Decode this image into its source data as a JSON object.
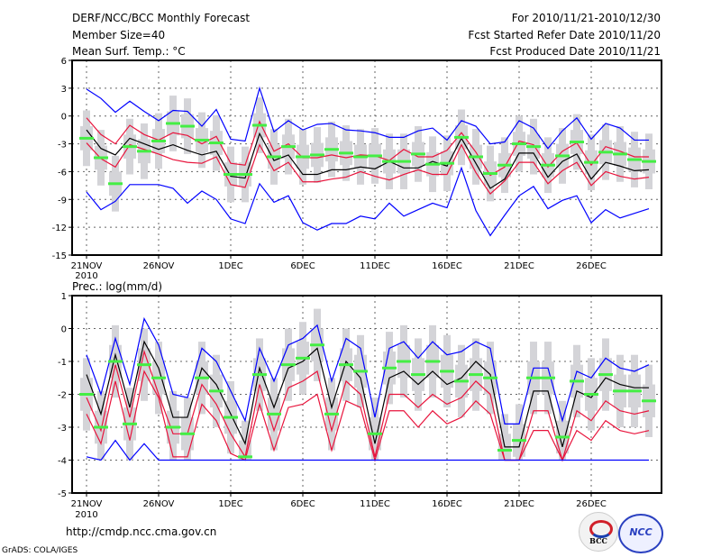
{
  "header": {
    "title": "DERF/NCC/BCC Monthly Forecast",
    "member_size": "Member Size=40",
    "top_var_label": "Mean Surf. Temp.: °C",
    "period": "For 2010/11/21-2010/12/30",
    "started": "Fcst Started Refer Date 2010/11/20",
    "produced": "Fcst Produced Date 2010/11/21"
  },
  "footer": {
    "url": "http://cmdp.ncc.cma.gov.cn",
    "grads": "GrADS: COLA/IGES",
    "logo_left": "BCC",
    "logo_right": "NCC"
  },
  "colors": {
    "max_min": "#0000ff",
    "spread": "#e8143c",
    "mean": "#000000",
    "marker": "#44ee44",
    "box": "#d4d4d8"
  },
  "chart_data": [
    {
      "type": "line",
      "title": "Mean Surf. Temp.: °C",
      "xlabel": "",
      "ylabel": "Mean Surf. Temp. (°C)",
      "ylim": [
        -15,
        6
      ],
      "yticks": [
        6,
        3,
        0,
        -3,
        -6,
        -9,
        -12,
        -15
      ],
      "ytick_labels": [
        "6",
        "3",
        "0",
        "-3",
        "-6",
        "-9",
        "-12",
        "-15"
      ],
      "xticks": [
        0,
        5,
        10,
        15,
        20,
        25,
        30,
        35
      ],
      "xtick_labels": [
        "21NOV",
        "26NOV",
        "1DEC",
        "6DEC",
        "11DEC",
        "16DEC",
        "21DEC",
        "26DEC"
      ],
      "xyear": "2010",
      "grid": true,
      "days": 40,
      "series": [
        {
          "name": "max",
          "color": "#0000ff",
          "values": [
            2.9,
            1.9,
            0.4,
            1.6,
            0.5,
            -0.5,
            0.6,
            0.5,
            -1.1,
            0.7,
            -2.5,
            -2.7,
            3.0,
            -1.7,
            -0.5,
            -1.5,
            -0.9,
            -0.8,
            -1.5,
            -1.6,
            -1.8,
            -2.3,
            -2.3,
            -1.6,
            -1.3,
            -2.6,
            -0.5,
            -1.1,
            -3.0,
            -2.8,
            -0.5,
            -1.3,
            -3.5,
            -1.6,
            -0.2,
            -2.5,
            -0.8,
            -1.3,
            -2.6,
            -2.6
          ]
        },
        {
          "name": "upper",
          "color": "#e8143c",
          "values": [
            -0.2,
            -2.0,
            -3.0,
            -1.0,
            -2.0,
            -2.6,
            -1.8,
            -2.1,
            -3.0,
            -2.2,
            -5.1,
            -5.3,
            -0.6,
            -3.8,
            -3.0,
            -4.5,
            -4.5,
            -4.2,
            -4.5,
            -4.2,
            -4.3,
            -4.8,
            -3.6,
            -4.4,
            -4.4,
            -3.7,
            -1.8,
            -3.9,
            -6.4,
            -5.5,
            -2.7,
            -3.1,
            -5.5,
            -3.8,
            -2.9,
            -5.3,
            -3.3,
            -3.8,
            -4.4,
            -4.4
          ]
        },
        {
          "name": "mean",
          "color": "#000000",
          "values": [
            -1.5,
            -3.5,
            -4.2,
            -2.4,
            -3.0,
            -3.6,
            -3.1,
            -3.7,
            -4.2,
            -3.8,
            -6.5,
            -6.7,
            -1.9,
            -4.8,
            -4.2,
            -6.3,
            -6.3,
            -5.8,
            -5.8,
            -5.5,
            -5.7,
            -4.9,
            -5.6,
            -5.6,
            -4.9,
            -5.4,
            -2.4,
            -5.1,
            -7.8,
            -6.8,
            -4.0,
            -4.0,
            -6.6,
            -4.9,
            -4.1,
            -6.8,
            -5.0,
            -5.4,
            -5.9,
            -5.8
          ]
        },
        {
          "name": "lower",
          "color": "#e8143c",
          "values": [
            -2.9,
            -4.6,
            -5.5,
            -3.1,
            -3.6,
            -4.1,
            -4.7,
            -5.0,
            -5.1,
            -4.4,
            -7.4,
            -7.7,
            -3.1,
            -5.9,
            -5.0,
            -7.1,
            -7.1,
            -6.8,
            -6.6,
            -6.0,
            -6.5,
            -6.9,
            -6.3,
            -5.8,
            -6.3,
            -6.3,
            -3.1,
            -6.1,
            -8.4,
            -7.0,
            -5.0,
            -5.0,
            -7.3,
            -5.9,
            -5.0,
            -7.5,
            -6.0,
            -6.5,
            -6.8,
            -6.6
          ]
        },
        {
          "name": "min",
          "color": "#0000ff",
          "values": [
            -8.2,
            -10.1,
            -9.2,
            -7.4,
            -7.4,
            -7.4,
            -7.8,
            -9.4,
            -8.1,
            -9.0,
            -11.1,
            -11.6,
            -7.3,
            -9.3,
            -8.6,
            -11.5,
            -12.3,
            -11.6,
            -11.6,
            -10.8,
            -11.1,
            -9.4,
            -10.8,
            -10.1,
            -9.4,
            -9.9,
            -5.6,
            -10.2,
            -12.9,
            -10.7,
            -8.6,
            -7.6,
            -10.0,
            -9.1,
            -8.6,
            -11.5,
            -10.1,
            -11.0,
            -10.5,
            -10.0
          ]
        },
        {
          "name": "marker",
          "color": "#44ee44",
          "values": [
            -2.4,
            -4.5,
            -7.3,
            -3.3,
            -3.8,
            -2.7,
            -0.8,
            -1.1,
            -2.6,
            -2.9,
            -6.3,
            -6.3,
            -1.0,
            -4.4,
            -3.3,
            -4.4,
            -4.2,
            -3.6,
            -4.0,
            -4.4,
            -4.3,
            -4.9,
            -4.9,
            -4.1,
            -5.2,
            -5.1,
            -2.3,
            -4.4,
            -6.2,
            -5.3,
            -3.0,
            -3.3,
            -5.3,
            -4.3,
            -2.8,
            -5.0,
            -3.9,
            -4.1,
            -4.7,
            -4.9
          ]
        }
      ],
      "box_halfwidth_units": 1.3,
      "whisker_halfwidth_units": 3.0
    },
    {
      "type": "line",
      "title": "Prec.: log(mm/d)",
      "xlabel": "",
      "ylabel": "Prec. log(mm/d)",
      "ylim": [
        -5,
        1
      ],
      "yticks": [
        1,
        0,
        -1,
        -2,
        -3,
        -4,
        -5
      ],
      "ytick_labels": [
        "1",
        "0",
        "-1",
        "-2",
        "-3",
        "-4",
        "-5"
      ],
      "xticks": [
        0,
        5,
        10,
        15,
        20,
        25,
        30,
        35
      ],
      "xtick_labels": [
        "21NOV",
        "26NOV",
        "1DEC",
        "6DEC",
        "11DEC",
        "16DEC",
        "21DEC",
        "26DEC"
      ],
      "xyear": "2010",
      "grid": true,
      "days": 40,
      "series": [
        {
          "name": "max",
          "color": "#0000ff",
          "values": [
            -0.8,
            -2.0,
            -0.3,
            -1.7,
            0.3,
            -0.5,
            -2.0,
            -2.1,
            -0.6,
            -1.0,
            -1.9,
            -2.8,
            -0.6,
            -1.6,
            -0.5,
            -0.3,
            0.1,
            -1.6,
            -0.3,
            -0.6,
            -2.7,
            -0.6,
            -0.4,
            -0.9,
            -0.4,
            -0.8,
            -0.7,
            -0.4,
            -0.6,
            -2.9,
            -2.9,
            -1.2,
            -1.2,
            -2.8,
            -1.3,
            -1.5,
            -0.9,
            -1.2,
            -1.3,
            -1.1
          ]
        },
        {
          "name": "upper",
          "color": "#e8143c",
          "values": [
            -2.1,
            -3.1,
            -1.1,
            -2.7,
            -0.7,
            -2.0,
            -3.2,
            -3.2,
            -1.7,
            -2.3,
            -3.2,
            -3.9,
            -1.7,
            -3.1,
            -1.8,
            -1.6,
            -1.3,
            -3.1,
            -1.6,
            -2.0,
            -3.9,
            -2.0,
            -2.0,
            -2.4,
            -2.0,
            -2.3,
            -2.1,
            -1.6,
            -2.0,
            -4.0,
            -4.0,
            -2.5,
            -2.5,
            -4.0,
            -2.5,
            -2.8,
            -2.2,
            -2.5,
            -2.6,
            -2.5
          ]
        },
        {
          "name": "mean",
          "color": "#000000",
          "values": [
            -1.4,
            -2.6,
            -0.8,
            -2.4,
            -0.4,
            -1.2,
            -2.7,
            -2.7,
            -1.2,
            -1.7,
            -2.6,
            -3.5,
            -1.2,
            -2.4,
            -1.2,
            -1.0,
            -0.6,
            -2.4,
            -1.0,
            -1.5,
            -3.5,
            -1.5,
            -1.3,
            -1.7,
            -1.3,
            -1.7,
            -1.5,
            -1.0,
            -1.4,
            -3.6,
            -3.6,
            -1.9,
            -1.9,
            -3.6,
            -1.9,
            -2.1,
            -1.5,
            -1.7,
            -1.8,
            -1.8
          ]
        },
        {
          "name": "lower",
          "color": "#e8143c",
          "values": [
            -2.6,
            -3.5,
            -1.6,
            -3.4,
            -1.3,
            -2.1,
            -3.9,
            -3.9,
            -2.3,
            -2.8,
            -3.8,
            -4.0,
            -2.3,
            -3.7,
            -2.4,
            -2.3,
            -2.0,
            -3.7,
            -2.2,
            -2.4,
            -4.0,
            -2.5,
            -2.5,
            -3.0,
            -2.5,
            -2.9,
            -2.7,
            -2.2,
            -2.6,
            -4.0,
            -4.0,
            -3.1,
            -3.1,
            -4.0,
            -3.1,
            -3.4,
            -2.8,
            -3.1,
            -3.2,
            -3.1
          ]
        },
        {
          "name": "min",
          "color": "#0000ff",
          "values": [
            -3.9,
            -4.0,
            -3.4,
            -4.0,
            -3.5,
            -4.0,
            -4.0,
            -4.0,
            -4.0,
            -4.0,
            -4.0,
            -4.0,
            -4.0,
            -4.0,
            -4.0,
            -4.0,
            -4.0,
            -4.0,
            -4.0,
            -4.0,
            -4.0,
            -4.0,
            -4.0,
            -4.0,
            -4.0,
            -4.0,
            -4.0,
            -4.0,
            -4.0,
            -4.0,
            -4.0,
            -4.0,
            -4.0,
            -4.0,
            -4.0,
            -4.0,
            -4.0,
            -4.0,
            -4.0,
            -4.0
          ]
        },
        {
          "name": "marker",
          "color": "#44ee44",
          "values": [
            -2.0,
            -3.0,
            -1.0,
            -2.9,
            -1.1,
            -1.5,
            -3.0,
            -3.2,
            -1.5,
            -1.9,
            -2.7,
            -3.9,
            -1.4,
            -2.6,
            -1.1,
            -0.9,
            -0.5,
            -2.6,
            -1.1,
            -1.3,
            -3.2,
            -1.2,
            -1.0,
            -1.4,
            -1.0,
            -1.3,
            -1.6,
            -1.4,
            -1.5,
            -3.7,
            -3.4,
            -1.5,
            -1.5,
            -3.3,
            -1.6,
            -2.0,
            -1.4,
            -1.9,
            -1.9,
            -2.2
          ]
        }
      ],
      "box_halfwidth_units": 0.5,
      "whisker_halfwidth_units": 1.1
    }
  ]
}
